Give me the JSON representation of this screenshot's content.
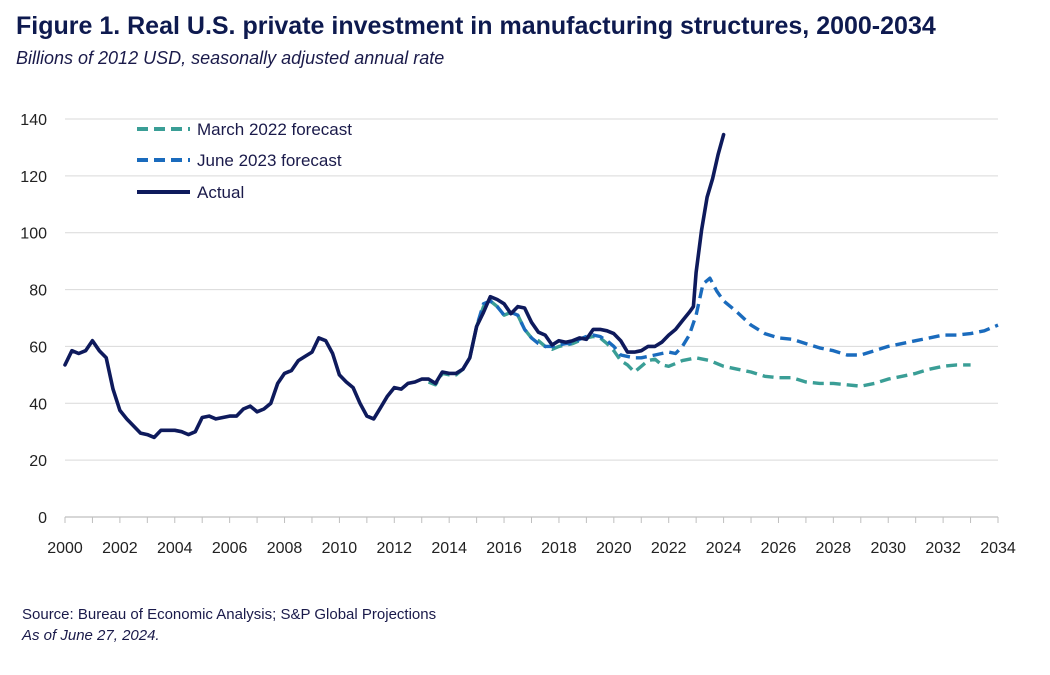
{
  "figure": {
    "title": "Figure 1. Real U.S. private investment in manufacturing structures, 2000-2034",
    "subtitle": "Billions of 2012 USD, seasonally adjusted annual rate",
    "source": "Source: Bureau of Economic Analysis; S&P Global Projections",
    "as_of": "As of June 27, 2024."
  },
  "chart_data": {
    "type": "line",
    "title": "Figure 1. Real U.S. private investment in manufacturing structures, 2000-2034",
    "ylabel": "",
    "xlabel": "",
    "xlim": [
      2000,
      2034
    ],
    "ylim": [
      0,
      140
    ],
    "x_ticks": [
      2000,
      2002,
      2004,
      2006,
      2008,
      2010,
      2012,
      2014,
      2016,
      2018,
      2020,
      2022,
      2024,
      2026,
      2028,
      2030,
      2032,
      2034
    ],
    "y_ticks": [
      0,
      20,
      40,
      60,
      80,
      100,
      120,
      140
    ],
    "grid": "horizontal",
    "legend_position": "top-left",
    "series": [
      {
        "name": "March 2022 forecast",
        "style": "dashed",
        "color": "#3a9e96",
        "points": [
          [
            2013.25,
            47.5
          ],
          [
            2013.5,
            46.5
          ],
          [
            2013.75,
            50.5
          ],
          [
            2014.0,
            50.0
          ],
          [
            2014.25,
            50.0
          ],
          [
            2014.5,
            52.0
          ],
          [
            2014.75,
            56.0
          ],
          [
            2015.0,
            67.0
          ],
          [
            2015.25,
            74.0
          ],
          [
            2015.5,
            76.0
          ],
          [
            2015.75,
            74.0
          ],
          [
            2016.0,
            71.0
          ],
          [
            2016.25,
            72.0
          ],
          [
            2016.5,
            71.0
          ],
          [
            2016.75,
            66.0
          ],
          [
            2017.0,
            63.0
          ],
          [
            2017.25,
            62.0
          ],
          [
            2017.5,
            60.0
          ],
          [
            2017.75,
            59.0
          ],
          [
            2018.0,
            60.0
          ],
          [
            2018.25,
            60.5
          ],
          [
            2018.5,
            61.0
          ],
          [
            2018.75,
            62.0
          ],
          [
            2019.0,
            63.0
          ],
          [
            2019.25,
            63.5
          ],
          [
            2019.5,
            63.0
          ],
          [
            2019.75,
            61.0
          ],
          [
            2020.0,
            58.5
          ],
          [
            2020.25,
            55.0
          ],
          [
            2020.5,
            53.5
          ],
          [
            2020.75,
            51.0
          ],
          [
            2021.0,
            53.0
          ],
          [
            2021.25,
            55.0
          ],
          [
            2021.5,
            55.5
          ],
          [
            2021.75,
            53.5
          ],
          [
            2022.0,
            53.0
          ],
          [
            2022.25,
            54.0
          ],
          [
            2022.5,
            55.0
          ],
          [
            2022.75,
            55.5
          ],
          [
            2023.0,
            56.0
          ],
          [
            2023.5,
            55.0
          ],
          [
            2024.0,
            53.0
          ],
          [
            2024.5,
            52.0
          ],
          [
            2025.0,
            51.0
          ],
          [
            2025.5,
            49.5
          ],
          [
            2026.0,
            49.0
          ],
          [
            2026.5,
            49.0
          ],
          [
            2027.0,
            47.5
          ],
          [
            2027.5,
            47.0
          ],
          [
            2028.0,
            47.0
          ],
          [
            2028.5,
            46.5
          ],
          [
            2029.0,
            46.0
          ],
          [
            2029.5,
            47.0
          ],
          [
            2030.0,
            48.5
          ],
          [
            2030.5,
            49.5
          ],
          [
            2031.0,
            50.5
          ],
          [
            2031.5,
            52.0
          ],
          [
            2032.0,
            53.0
          ],
          [
            2032.5,
            53.5
          ],
          [
            2033.0,
            53.5
          ]
        ]
      },
      {
        "name": "June 2023 forecast",
        "style": "dashed",
        "color": "#1a6bbd",
        "points": [
          [
            2014.5,
            52.0
          ],
          [
            2014.75,
            56.0
          ],
          [
            2015.0,
            67.0
          ],
          [
            2015.25,
            75.0
          ],
          [
            2015.5,
            76.0
          ],
          [
            2015.75,
            74.0
          ],
          [
            2016.0,
            71.0
          ],
          [
            2016.25,
            72.0
          ],
          [
            2016.5,
            71.0
          ],
          [
            2016.75,
            66.0
          ],
          [
            2017.0,
            63.0
          ],
          [
            2017.25,
            61.0
          ],
          [
            2017.5,
            60.0
          ],
          [
            2017.75,
            60.0
          ],
          [
            2018.0,
            60.5
          ],
          [
            2018.25,
            61.0
          ],
          [
            2018.5,
            61.0
          ],
          [
            2018.75,
            62.5
          ],
          [
            2019.0,
            63.5
          ],
          [
            2019.25,
            64.0
          ],
          [
            2019.5,
            63.5
          ],
          [
            2019.75,
            62.0
          ],
          [
            2020.0,
            60.0
          ],
          [
            2020.25,
            57.0
          ],
          [
            2020.5,
            56.5
          ],
          [
            2020.75,
            56.0
          ],
          [
            2021.0,
            56.0
          ],
          [
            2021.25,
            56.5
          ],
          [
            2021.5,
            57.0
          ],
          [
            2021.75,
            57.5
          ],
          [
            2022.0,
            58.0
          ],
          [
            2022.25,
            57.5
          ],
          [
            2022.5,
            60.0
          ],
          [
            2022.75,
            64.0
          ],
          [
            2023.0,
            71.0
          ],
          [
            2023.25,
            82.0
          ],
          [
            2023.5,
            84.0
          ],
          [
            2023.75,
            79.5
          ],
          [
            2024.0,
            76.0
          ],
          [
            2024.5,
            72.0
          ],
          [
            2025.0,
            67.5
          ],
          [
            2025.5,
            64.5
          ],
          [
            2026.0,
            63.0
          ],
          [
            2026.5,
            62.5
          ],
          [
            2027.0,
            61.0
          ],
          [
            2027.5,
            59.5
          ],
          [
            2028.0,
            58.5
          ],
          [
            2028.5,
            57.0
          ],
          [
            2029.0,
            57.0
          ],
          [
            2029.5,
            58.5
          ],
          [
            2030.0,
            60.0
          ],
          [
            2030.5,
            61.0
          ],
          [
            2031.0,
            62.0
          ],
          [
            2031.5,
            63.0
          ],
          [
            2032.0,
            64.0
          ],
          [
            2032.5,
            64.0
          ],
          [
            2033.0,
            64.5
          ],
          [
            2033.5,
            65.5
          ],
          [
            2034.0,
            67.5
          ]
        ]
      },
      {
        "name": "Actual",
        "style": "solid",
        "color": "#0e1a5c",
        "points": [
          [
            2000.0,
            53.5
          ],
          [
            2000.25,
            58.5
          ],
          [
            2000.5,
            57.5
          ],
          [
            2000.75,
            58.5
          ],
          [
            2001.0,
            62.0
          ],
          [
            2001.25,
            58.5
          ],
          [
            2001.5,
            56.0
          ],
          [
            2001.75,
            45.0
          ],
          [
            2002.0,
            37.5
          ],
          [
            2002.25,
            34.5
          ],
          [
            2002.5,
            32.0
          ],
          [
            2002.75,
            29.5
          ],
          [
            2003.0,
            29.0
          ],
          [
            2003.25,
            28.0
          ],
          [
            2003.5,
            30.5
          ],
          [
            2003.75,
            30.5
          ],
          [
            2004.0,
            30.5
          ],
          [
            2004.25,
            30.0
          ],
          [
            2004.5,
            29.0
          ],
          [
            2004.75,
            30.0
          ],
          [
            2005.0,
            35.0
          ],
          [
            2005.25,
            35.5
          ],
          [
            2005.5,
            34.5
          ],
          [
            2005.75,
            35.0
          ],
          [
            2006.0,
            35.5
          ],
          [
            2006.25,
            35.5
          ],
          [
            2006.5,
            38.0
          ],
          [
            2006.75,
            39.0
          ],
          [
            2007.0,
            37.0
          ],
          [
            2007.25,
            38.0
          ],
          [
            2007.5,
            40.0
          ],
          [
            2007.75,
            47.0
          ],
          [
            2008.0,
            50.5
          ],
          [
            2008.25,
            51.5
          ],
          [
            2008.5,
            55.0
          ],
          [
            2008.75,
            56.5
          ],
          [
            2009.0,
            58.0
          ],
          [
            2009.25,
            63.0
          ],
          [
            2009.5,
            62.0
          ],
          [
            2009.75,
            57.5
          ],
          [
            2010.0,
            50.0
          ],
          [
            2010.25,
            47.5
          ],
          [
            2010.5,
            45.5
          ],
          [
            2010.75,
            40.0
          ],
          [
            2011.0,
            35.5
          ],
          [
            2011.25,
            34.5
          ],
          [
            2011.5,
            38.5
          ],
          [
            2011.75,
            42.5
          ],
          [
            2012.0,
            45.5
          ],
          [
            2012.25,
            45.0
          ],
          [
            2012.5,
            47.0
          ],
          [
            2012.75,
            47.5
          ],
          [
            2013.0,
            48.5
          ],
          [
            2013.25,
            48.5
          ],
          [
            2013.5,
            47.0
          ],
          [
            2013.75,
            51.0
          ],
          [
            2014.0,
            50.5
          ],
          [
            2014.25,
            50.5
          ],
          [
            2014.5,
            52.0
          ],
          [
            2014.75,
            56.0
          ],
          [
            2015.0,
            67.0
          ],
          [
            2015.25,
            72.0
          ],
          [
            2015.5,
            77.5
          ],
          [
            2015.75,
            76.5
          ],
          [
            2016.0,
            75.0
          ],
          [
            2016.25,
            71.5
          ],
          [
            2016.5,
            74.0
          ],
          [
            2016.75,
            73.5
          ],
          [
            2017.0,
            68.5
          ],
          [
            2017.25,
            65.0
          ],
          [
            2017.5,
            64.0
          ],
          [
            2017.75,
            60.5
          ],
          [
            2018.0,
            62.0
          ],
          [
            2018.25,
            61.5
          ],
          [
            2018.5,
            62.0
          ],
          [
            2018.75,
            63.0
          ],
          [
            2019.0,
            62.5
          ],
          [
            2019.25,
            66.0
          ],
          [
            2019.5,
            66.0
          ],
          [
            2019.75,
            65.5
          ],
          [
            2020.0,
            64.5
          ],
          [
            2020.25,
            62.0
          ],
          [
            2020.5,
            58.0
          ],
          [
            2020.75,
            58.0
          ],
          [
            2021.0,
            58.5
          ],
          [
            2021.25,
            60.0
          ],
          [
            2021.5,
            60.0
          ],
          [
            2021.75,
            61.5
          ],
          [
            2022.0,
            64.0
          ],
          [
            2022.25,
            66.0
          ],
          [
            2022.5,
            69.0
          ],
          [
            2022.75,
            72.0
          ],
          [
            2022.9,
            74.0
          ],
          [
            2023.0,
            86.0
          ],
          [
            2023.2,
            101.0
          ],
          [
            2023.4,
            112.5
          ],
          [
            2023.6,
            119.0
          ],
          [
            2023.8,
            127.5
          ],
          [
            2024.0,
            134.5
          ]
        ]
      }
    ]
  }
}
